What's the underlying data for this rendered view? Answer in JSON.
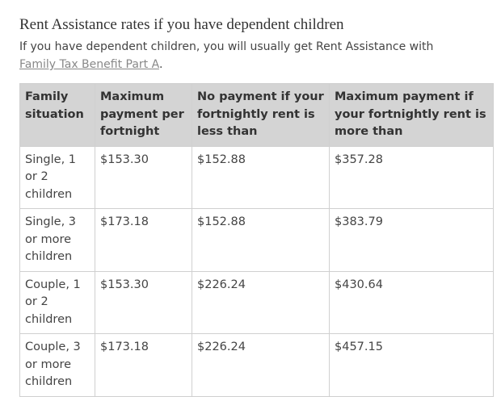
{
  "header": {
    "title": "Rent Assistance rates if you have dependent children"
  },
  "intro": {
    "text": "If you have dependent children, you will usually get Rent Assistance with",
    "link": "Family Tax Benefit Part A",
    "end": "."
  },
  "table": {
    "headers": [
      "Family situation",
      "Maximum payment per fortnight",
      "No payment if your fortnightly rent is less than",
      "Maximum payment if your fortnightly rent is more than"
    ],
    "rows": [
      [
        "Single, 1 or 2 children",
        "$153.30",
        "$152.88",
        "$357.28"
      ],
      [
        "Single, 3 or more children",
        "$173.18",
        "$152.88",
        "$383.79"
      ],
      [
        "Couple, 1 or 2 children",
        "$153.30",
        "$226.24",
        "$430.64"
      ],
      [
        "Couple, 3 or more children",
        "$173.18",
        "$226.24",
        "$457.15"
      ]
    ]
  }
}
